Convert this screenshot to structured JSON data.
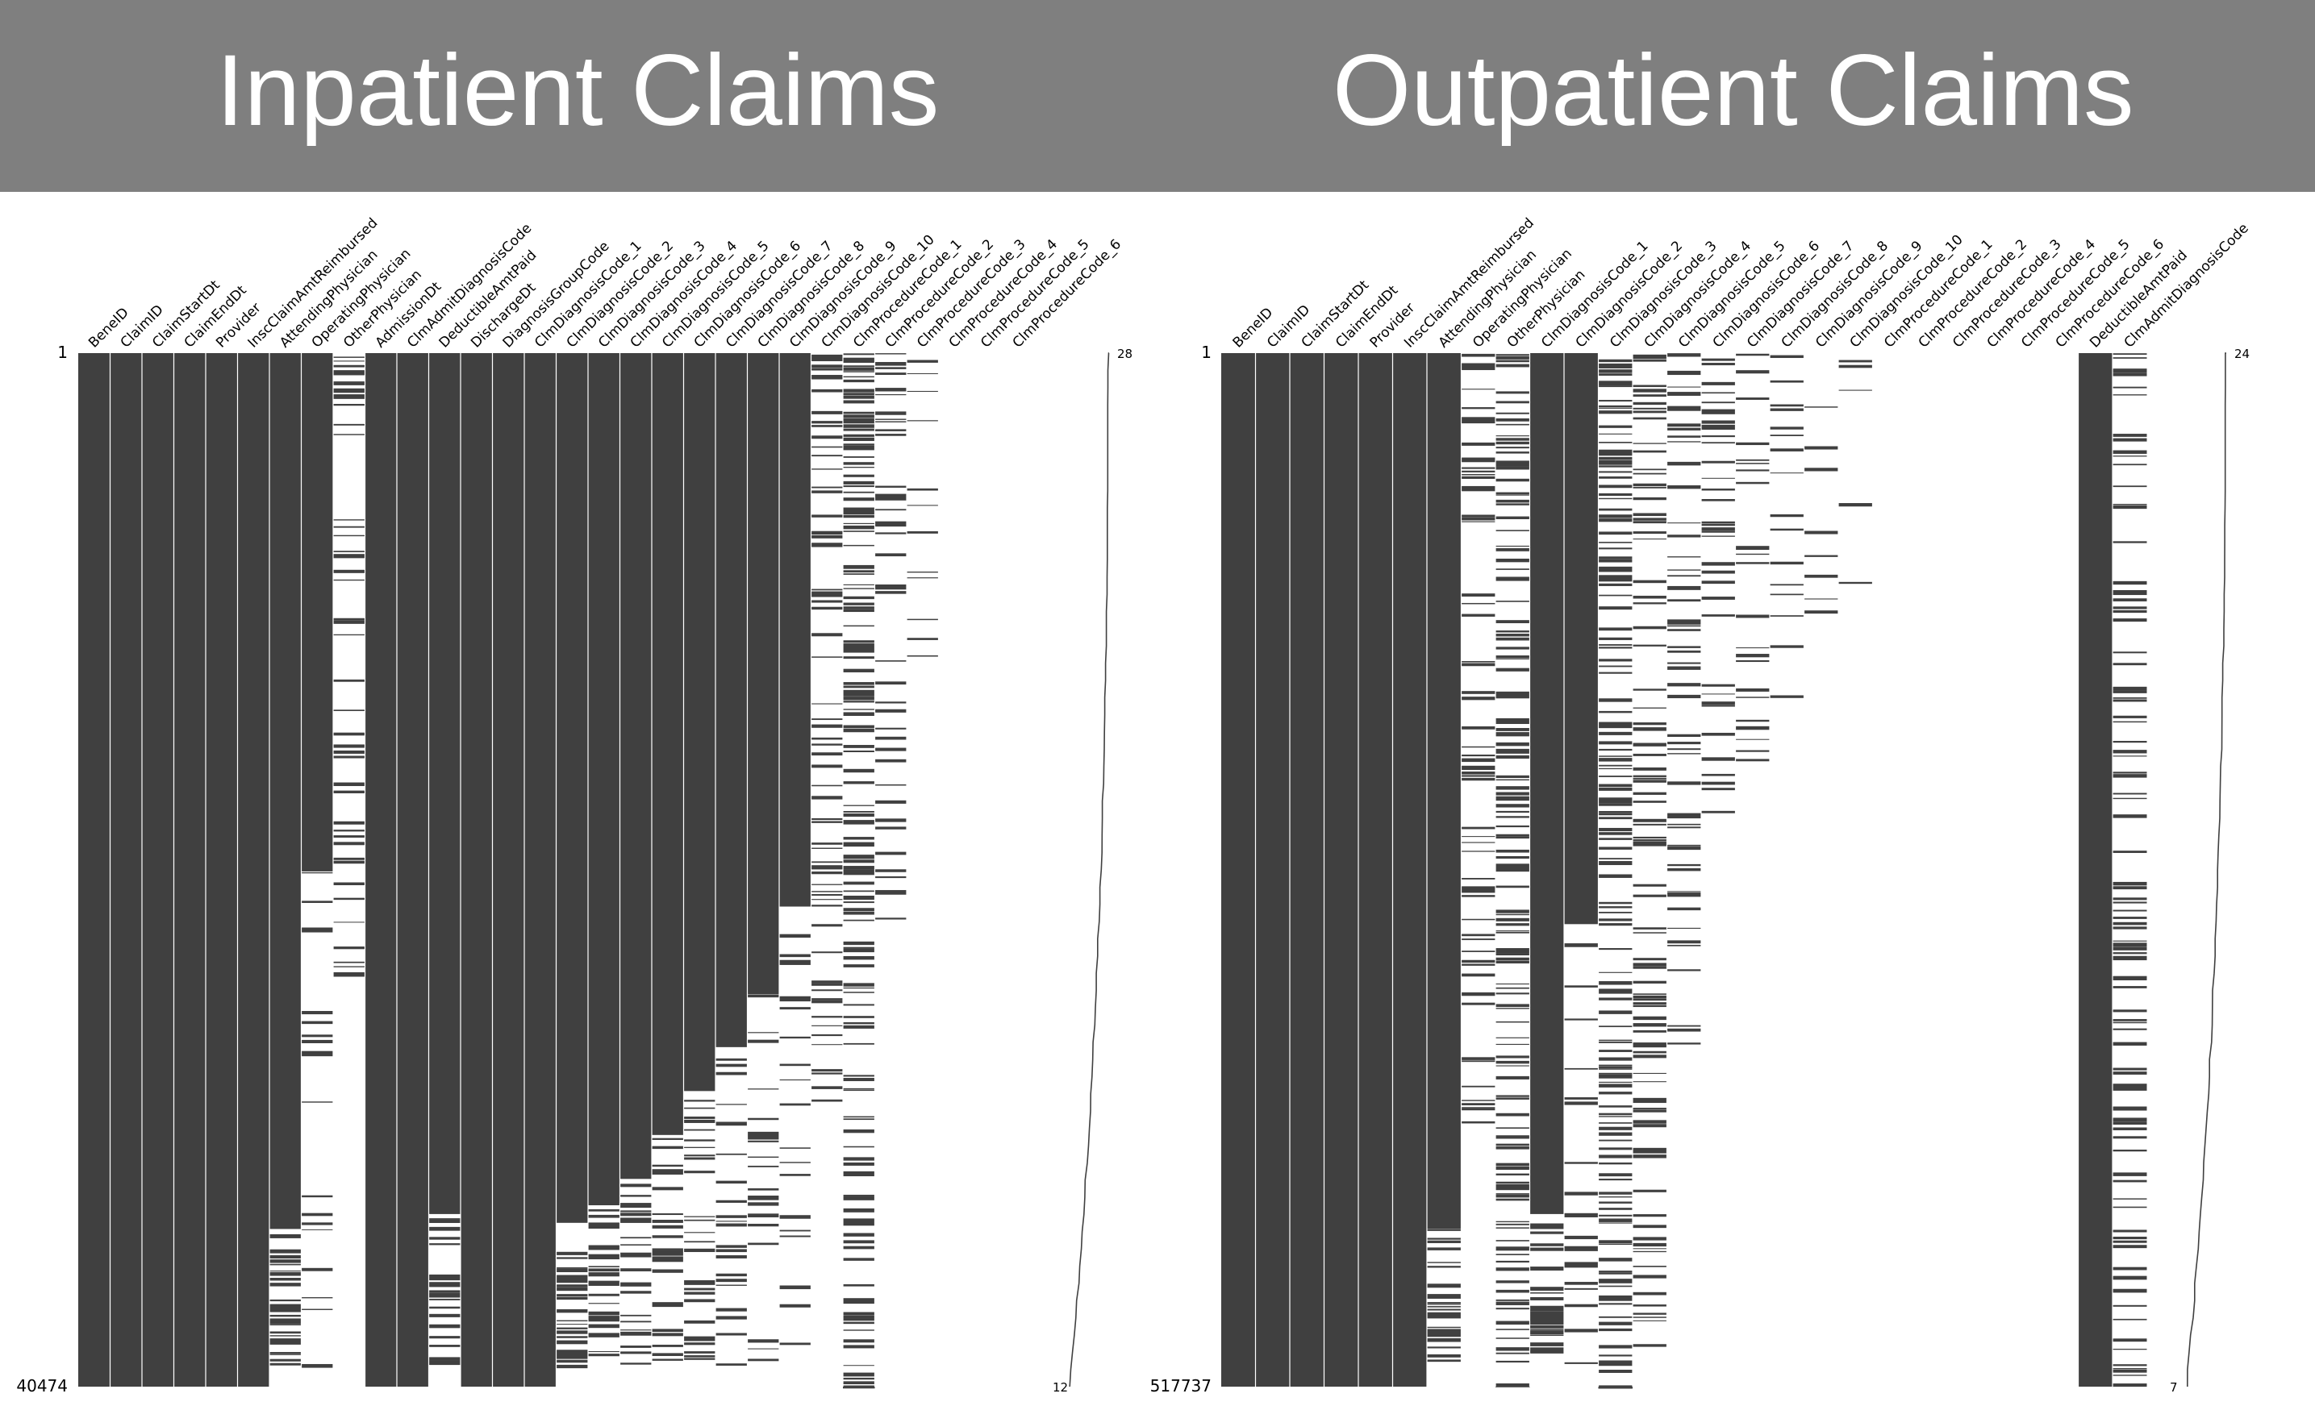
{
  "banner": {
    "inpatient_title": "Inpatient Claims",
    "outpatient_title": "Outpatient Claims",
    "background_color": "#7f7f7f",
    "text_color": "#ffffff"
  },
  "colors": {
    "present": "#404040",
    "missing": "#ffffff",
    "separator": "#ffffff",
    "sparkline": "#404040"
  },
  "chart_data": [
    {
      "type": "heatmap",
      "subtype": "missing-value matrix",
      "title": "Inpatient Claims",
      "row_labels": [
        "1",
        "40474"
      ],
      "sparkline_labels": {
        "max": "28",
        "min": "12"
      },
      "columns": [
        {
          "name": "BeneID",
          "present_fraction": 1.0
        },
        {
          "name": "ClaimID",
          "present_fraction": 1.0
        },
        {
          "name": "ClaimStartDt",
          "present_fraction": 1.0
        },
        {
          "name": "ClaimEndDt",
          "present_fraction": 1.0
        },
        {
          "name": "Provider",
          "present_fraction": 1.0
        },
        {
          "name": "InscClaimAmtReimbursed",
          "present_fraction": 1.0
        },
        {
          "name": "AttendingPhysician",
          "present_fraction": 0.997
        },
        {
          "name": "OperatingPhysician",
          "present_fraction": 0.59
        },
        {
          "name": "OtherPhysician",
          "present_fraction": 0.12
        },
        {
          "name": "AdmissionDt",
          "present_fraction": 1.0
        },
        {
          "name": "ClmAdmitDiagnosisCode",
          "present_fraction": 1.0
        },
        {
          "name": "DeductibleAmtPaid",
          "present_fraction": 0.98
        },
        {
          "name": "DischargeDt",
          "present_fraction": 1.0
        },
        {
          "name": "DiagnosisGroupCode",
          "present_fraction": 1.0
        },
        {
          "name": "ClmDiagnosisCode_1",
          "present_fraction": 1.0
        },
        {
          "name": "ClmDiagnosisCode_2",
          "present_fraction": 0.99
        },
        {
          "name": "ClmDiagnosisCode_3",
          "present_fraction": 0.97
        },
        {
          "name": "ClmDiagnosisCode_4",
          "present_fraction": 0.94
        },
        {
          "name": "ClmDiagnosisCode_5",
          "present_fraction": 0.89
        },
        {
          "name": "ClmDiagnosisCode_6",
          "present_fraction": 0.84
        },
        {
          "name": "ClmDiagnosisCode_7",
          "present_fraction": 0.79
        },
        {
          "name": "ClmDiagnosisCode_8",
          "present_fraction": 0.73
        },
        {
          "name": "ClmDiagnosisCode_9",
          "present_fraction": 0.63
        },
        {
          "name": "ClmDiagnosisCode_10",
          "present_fraction": 0.16
        },
        {
          "name": "ClmProcedureCode_1",
          "present_fraction": 0.43
        },
        {
          "name": "ClmProcedureCode_2",
          "present_fraction": 0.1
        },
        {
          "name": "ClmProcedureCode_3",
          "present_fraction": 0.02
        },
        {
          "name": "ClmProcedureCode_4",
          "present_fraction": 0.0
        },
        {
          "name": "ClmProcedureCode_5",
          "present_fraction": 0.0
        },
        {
          "name": "ClmProcedureCode_6",
          "present_fraction": 0.0
        }
      ]
    },
    {
      "type": "heatmap",
      "subtype": "missing-value matrix",
      "title": "Outpatient Claims",
      "row_labels": [
        "1",
        "517737"
      ],
      "sparkline_labels": {
        "max": "24",
        "min": "7"
      },
      "columns": [
        {
          "name": "BeneID",
          "present_fraction": 1.0
        },
        {
          "name": "ClaimID",
          "present_fraction": 1.0
        },
        {
          "name": "ClaimStartDt",
          "present_fraction": 1.0
        },
        {
          "name": "ClaimEndDt",
          "present_fraction": 1.0
        },
        {
          "name": "Provider",
          "present_fraction": 1.0
        },
        {
          "name": "InscClaimAmtReimbursed",
          "present_fraction": 1.0
        },
        {
          "name": "AttendingPhysician",
          "present_fraction": 0.997
        },
        {
          "name": "OperatingPhysician",
          "present_fraction": 0.17
        },
        {
          "name": "OtherPhysician",
          "present_fraction": 0.37
        },
        {
          "name": "ClmDiagnosisCode_1",
          "present_fraction": 0.98
        },
        {
          "name": "ClmDiagnosisCode_2",
          "present_fraction": 0.65
        },
        {
          "name": "ClmDiagnosisCode_3",
          "present_fraction": 0.4
        },
        {
          "name": "ClmDiagnosisCode_4",
          "present_fraction": 0.24
        },
        {
          "name": "ClmDiagnosisCode_5",
          "present_fraction": 0.14
        },
        {
          "name": "ClmDiagnosisCode_6",
          "present_fraction": 0.08
        },
        {
          "name": "ClmDiagnosisCode_7",
          "present_fraction": 0.05
        },
        {
          "name": "ClmDiagnosisCode_8",
          "present_fraction": 0.03
        },
        {
          "name": "ClmDiagnosisCode_9",
          "present_fraction": 0.01
        },
        {
          "name": "ClmDiagnosisCode_10",
          "present_fraction": 0.002
        },
        {
          "name": "ClmProcedureCode_1",
          "present_fraction": 0.0
        },
        {
          "name": "ClmProcedureCode_2",
          "present_fraction": 0.0
        },
        {
          "name": "ClmProcedureCode_3",
          "present_fraction": 0.0
        },
        {
          "name": "ClmProcedureCode_4",
          "present_fraction": 0.0
        },
        {
          "name": "ClmProcedureCode_5",
          "present_fraction": 0.0
        },
        {
          "name": "ClmProcedureCode_6",
          "present_fraction": 0.0
        },
        {
          "name": "DeductibleAmtPaid",
          "present_fraction": 1.0
        },
        {
          "name": "ClmAdmitDiagnosisCode",
          "present_fraction": 0.26
        }
      ]
    }
  ]
}
